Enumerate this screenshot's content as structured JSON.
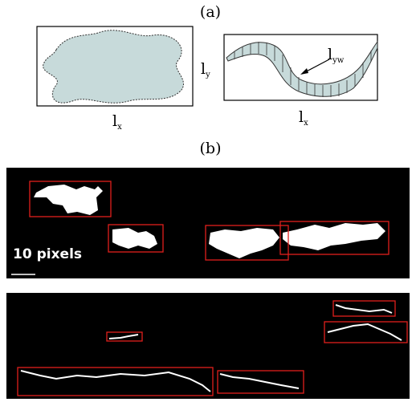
{
  "panel_a": {
    "label": "(a)",
    "left_width": {
      "main": "l",
      "sub": "x"
    },
    "left_height": {
      "main": "l",
      "sub": "y"
    },
    "right_width": {
      "main": "l",
      "sub": "x"
    },
    "right_band": {
      "main": "l",
      "sub": "yw"
    }
  },
  "panel_b": {
    "label": "(b)",
    "scale_label": "10 pixels"
  }
}
